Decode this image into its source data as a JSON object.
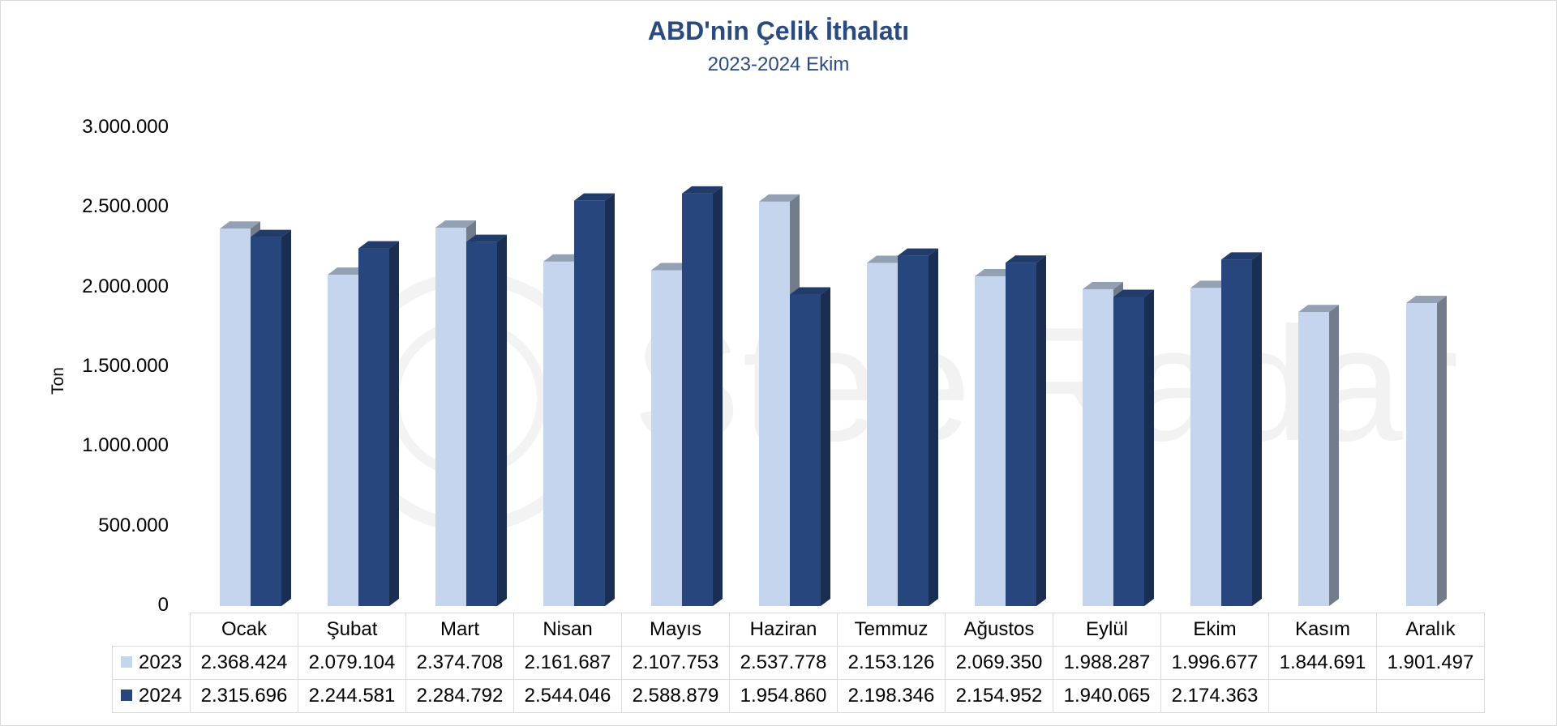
{
  "chart_data": {
    "type": "bar",
    "title": "ABD'nin Çelik İthalatı",
    "subtitle": "2023-2024 Ekim",
    "ylabel": "Ton",
    "ylim": [
      0,
      3000000
    ],
    "yticks": [
      "0",
      "500.000",
      "1.000.000",
      "1.500.000",
      "2.000.000",
      "2.500.000",
      "3.000.000"
    ],
    "categories": [
      "Ocak",
      "Şubat",
      "Mart",
      "Nisan",
      "Mayıs",
      "Haziran",
      "Temmuz",
      "Ağustos",
      "Eylül",
      "Ekim",
      "Kasım",
      "Aralık"
    ],
    "series": [
      {
        "name": "2023",
        "color": "#c5d5ee",
        "values": [
          2368424,
          2079104,
          2374708,
          2161687,
          2107753,
          2537778,
          2153126,
          2069350,
          1988287,
          1996677,
          1844691,
          1901497
        ],
        "labels": [
          "2.368.424",
          "2.079.104",
          "2.374.708",
          "2.161.687",
          "2.107.753",
          "2.537.778",
          "2.153.126",
          "2.069.350",
          "1.988.287",
          "1.996.677",
          "1.844.691",
          "1.901.497"
        ]
      },
      {
        "name": "2024",
        "color": "#27467d",
        "values": [
          2315696,
          2244581,
          2284792,
          2544046,
          2588879,
          1954860,
          2198346,
          2154952,
          1940065,
          2174363,
          null,
          null
        ],
        "labels": [
          "2.315.696",
          "2.244.581",
          "2.284.792",
          "2.544.046",
          "2.588.879",
          "1.954.860",
          "2.198.346",
          "2.154.952",
          "1.940.065",
          "2.174.363",
          "",
          ""
        ]
      }
    ],
    "legend": "data-table",
    "grid": false
  },
  "watermark": "SteelRadar"
}
